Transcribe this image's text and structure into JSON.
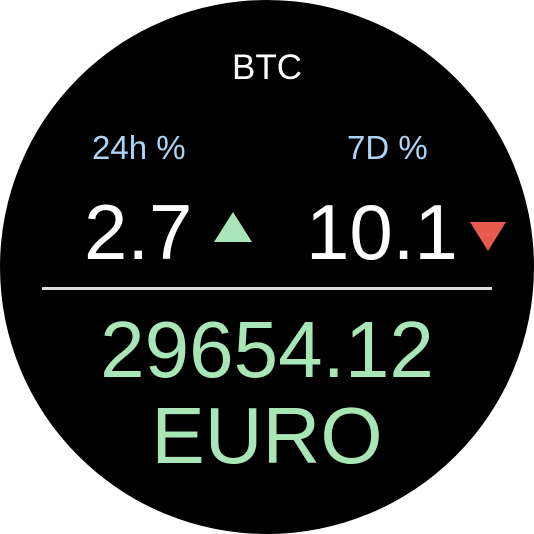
{
  "coin": "BTC",
  "changes": {
    "day": {
      "label": "24h %",
      "value": "2.7",
      "direction": "up",
      "color": "#a8e6b7"
    },
    "week": {
      "label": "7D %",
      "value": "10.1",
      "direction": "down",
      "color": "#e85c4e"
    }
  },
  "price": {
    "amount": "29654.12",
    "currency": "EURO",
    "color": "#a8e6b7"
  },
  "colors": {
    "background": "#000000",
    "label": "#aed3f5",
    "text": "#ffffff"
  },
  "icons": {
    "day_arrow": "triangle-up-icon",
    "week_arrow": "triangle-down-icon"
  }
}
